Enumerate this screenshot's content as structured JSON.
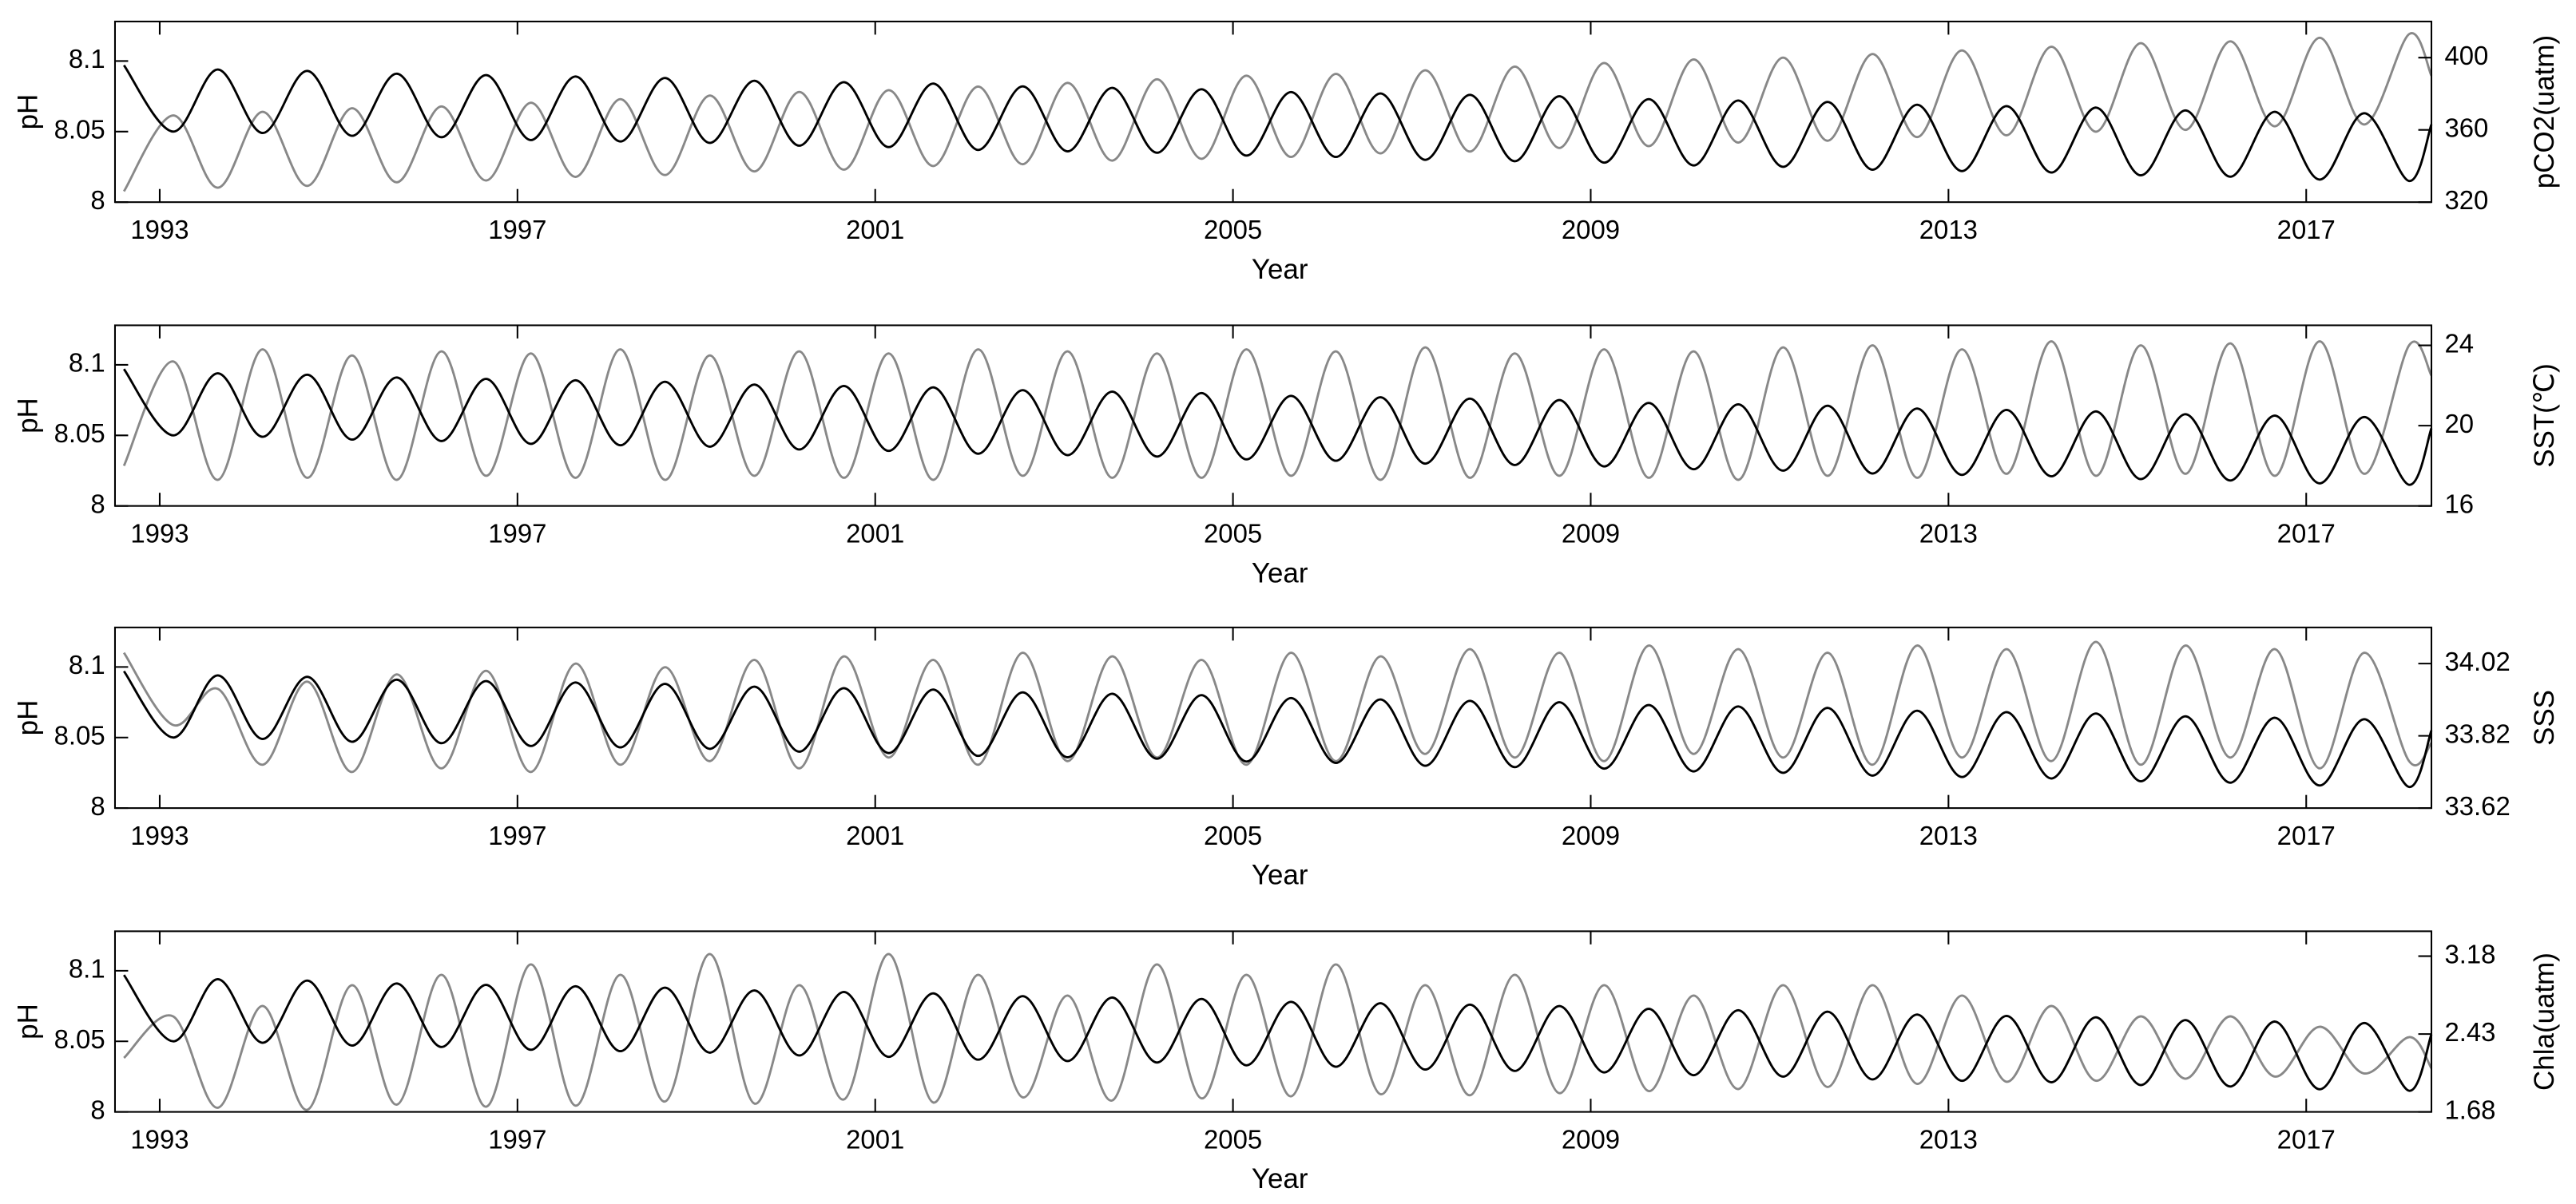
{
  "chart_data": [
    {
      "type": "line",
      "ylabel": "pH",
      "y2label": "pCO2(uatm)",
      "xlabel": "Year",
      "xlim": [
        1992.5,
        2018.4
      ],
      "xticks": [
        1993,
        1997,
        2001,
        2005,
        2009,
        2013,
        2017
      ],
      "ylim": [
        8,
        8.128
      ],
      "yticks": [
        8,
        8.05,
        8.1
      ],
      "y2lim": [
        320,
        420
      ],
      "y2ticks": [
        320,
        360,
        400
      ],
      "x": [
        1992.6,
        1993.15,
        1993.65,
        1994.15,
        1994.65,
        1995.15,
        1995.65,
        1996.15,
        1996.65,
        1997.15,
        1997.65,
        1998.15,
        1998.65,
        1999.15,
        1999.65,
        2000.15,
        2000.65,
        2001.15,
        2001.65,
        2002.15,
        2002.65,
        2003.15,
        2003.65,
        2004.15,
        2004.65,
        2005.15,
        2005.65,
        2006.15,
        2006.65,
        2007.15,
        2007.65,
        2008.15,
        2008.65,
        2009.15,
        2009.65,
        2010.15,
        2010.65,
        2011.15,
        2011.65,
        2012.15,
        2012.65,
        2013.15,
        2013.65,
        2014.15,
        2014.65,
        2015.15,
        2015.65,
        2016.15,
        2016.65,
        2017.15,
        2017.65,
        2018.15,
        2018.4
      ],
      "series": [
        {
          "color": "#000000",
          "axis": "y",
          "values": [
            8.097,
            8.05,
            8.094,
            8.049,
            8.093,
            8.047,
            8.091,
            8.046,
            8.09,
            8.044,
            8.089,
            8.043,
            8.088,
            8.042,
            8.086,
            8.04,
            8.085,
            8.039,
            8.084,
            8.037,
            8.082,
            8.036,
            8.081,
            8.035,
            8.08,
            8.033,
            8.078,
            8.032,
            8.077,
            8.03,
            8.076,
            8.029,
            8.075,
            8.028,
            8.073,
            8.026,
            8.072,
            8.025,
            8.071,
            8.023,
            8.069,
            8.022,
            8.068,
            8.021,
            8.067,
            8.019,
            8.065,
            8.018,
            8.064,
            8.016,
            8.063,
            8.015,
            8.055
          ]
        },
        {
          "color": "#888888",
          "axis": "y2",
          "values": [
            326,
            368,
            328,
            370,
            329,
            372,
            331,
            373,
            332,
            375,
            334,
            377,
            335,
            379,
            337,
            381,
            338,
            382,
            340,
            384,
            341,
            386,
            343,
            388,
            344,
            390,
            345,
            391,
            347,
            393,
            348,
            395,
            350,
            397,
            351,
            399,
            353,
            400,
            354,
            402,
            356,
            404,
            357,
            406,
            359,
            408,
            360,
            409,
            362,
            411,
            363,
            413,
            390
          ]
        }
      ]
    },
    {
      "type": "line",
      "ylabel": "pH",
      "y2label": "SST(℃)",
      "xlabel": "Year",
      "xlim": [
        1992.5,
        2018.4
      ],
      "xticks": [
        1993,
        1997,
        2001,
        2005,
        2009,
        2013,
        2017
      ],
      "ylim": [
        8,
        8.128
      ],
      "yticks": [
        8,
        8.05,
        8.1
      ],
      "y2lim": [
        16,
        25
      ],
      "y2ticks": [
        16,
        20,
        24
      ],
      "x": [
        1992.6,
        1993.15,
        1993.65,
        1994.15,
        1994.65,
        1995.15,
        1995.65,
        1996.15,
        1996.65,
        1997.15,
        1997.65,
        1998.15,
        1998.65,
        1999.15,
        1999.65,
        2000.15,
        2000.65,
        2001.15,
        2001.65,
        2002.15,
        2002.65,
        2003.15,
        2003.65,
        2004.15,
        2004.65,
        2005.15,
        2005.65,
        2006.15,
        2006.65,
        2007.15,
        2007.65,
        2008.15,
        2008.65,
        2009.15,
        2009.65,
        2010.15,
        2010.65,
        2011.15,
        2011.65,
        2012.15,
        2012.65,
        2013.15,
        2013.65,
        2014.15,
        2014.65,
        2015.15,
        2015.65,
        2016.15,
        2016.65,
        2017.15,
        2017.65,
        2018.15,
        2018.4
      ],
      "series": [
        {
          "color": "#000000",
          "axis": "y",
          "values": [
            8.097,
            8.05,
            8.094,
            8.049,
            8.093,
            8.047,
            8.091,
            8.046,
            8.09,
            8.044,
            8.089,
            8.043,
            8.088,
            8.042,
            8.086,
            8.04,
            8.085,
            8.039,
            8.084,
            8.037,
            8.082,
            8.036,
            8.081,
            8.035,
            8.08,
            8.033,
            8.078,
            8.032,
            8.077,
            8.03,
            8.076,
            8.029,
            8.075,
            8.028,
            8.073,
            8.026,
            8.072,
            8.025,
            8.071,
            8.023,
            8.069,
            8.022,
            8.068,
            8.021,
            8.067,
            8.019,
            8.065,
            8.018,
            8.064,
            8.016,
            8.063,
            8.015,
            8.055
          ]
        },
        {
          "color": "#888888",
          "axis": "y2",
          "values": [
            18,
            23.2,
            17.3,
            23.8,
            17.4,
            23.5,
            17.3,
            23.7,
            17.5,
            23.6,
            17.4,
            23.8,
            17.3,
            23.5,
            17.5,
            23.7,
            17.4,
            23.6,
            17.3,
            23.8,
            17.5,
            23.7,
            17.4,
            23.6,
            17.4,
            23.8,
            17.5,
            23.7,
            17.3,
            23.9,
            17.4,
            23.6,
            17.5,
            23.8,
            17.4,
            23.7,
            17.3,
            23.9,
            17.5,
            24,
            17.4,
            23.8,
            17.6,
            24.2,
            17.5,
            24,
            17.6,
            24.1,
            17.5,
            24.2,
            17.6,
            24,
            22.5
          ]
        }
      ]
    },
    {
      "type": "line",
      "ylabel": "pH",
      "y2label": "SSS",
      "xlabel": "Year",
      "xlim": [
        1992.5,
        2018.4
      ],
      "xticks": [
        1993,
        1997,
        2001,
        2005,
        2009,
        2013,
        2017
      ],
      "ylim": [
        8,
        8.128
      ],
      "yticks": [
        8,
        8.05,
        8.1
      ],
      "y2lim": [
        33.62,
        34.12
      ],
      "y2ticks": [
        33.62,
        33.82,
        34.02
      ],
      "x": [
        1992.6,
        1993.15,
        1993.65,
        1994.15,
        1994.65,
        1995.15,
        1995.65,
        1996.15,
        1996.65,
        1997.15,
        1997.65,
        1998.15,
        1998.65,
        1999.15,
        1999.65,
        2000.15,
        2000.65,
        2001.15,
        2001.65,
        2002.15,
        2002.65,
        2003.15,
        2003.65,
        2004.15,
        2004.65,
        2005.15,
        2005.65,
        2006.15,
        2006.65,
        2007.15,
        2007.65,
        2008.15,
        2008.65,
        2009.15,
        2009.65,
        2010.15,
        2010.65,
        2011.15,
        2011.65,
        2012.15,
        2012.65,
        2013.15,
        2013.65,
        2014.15,
        2014.65,
        2015.15,
        2015.65,
        2016.15,
        2016.65,
        2017.15,
        2017.65,
        2018.15,
        2018.4
      ],
      "series": [
        {
          "color": "#000000",
          "axis": "y",
          "values": [
            8.097,
            8.05,
            8.094,
            8.049,
            8.093,
            8.047,
            8.091,
            8.046,
            8.09,
            8.044,
            8.089,
            8.043,
            8.088,
            8.042,
            8.086,
            8.04,
            8.085,
            8.039,
            8.084,
            8.037,
            8.082,
            8.036,
            8.081,
            8.035,
            8.08,
            8.033,
            8.078,
            8.032,
            8.077,
            8.03,
            8.076,
            8.029,
            8.075,
            8.028,
            8.073,
            8.026,
            8.072,
            8.025,
            8.071,
            8.023,
            8.069,
            8.022,
            8.068,
            8.021,
            8.067,
            8.019,
            8.065,
            8.018,
            8.064,
            8.016,
            8.063,
            8.015,
            8.055
          ]
        },
        {
          "color": "#888888",
          "axis": "y2",
          "values": [
            34.05,
            33.85,
            33.95,
            33.74,
            33.97,
            33.72,
            33.99,
            33.73,
            34,
            33.72,
            34.02,
            33.74,
            34.01,
            33.75,
            34.03,
            33.73,
            34.04,
            33.76,
            34.03,
            33.74,
            34.05,
            33.75,
            34.04,
            33.76,
            34.03,
            33.74,
            34.05,
            33.75,
            34.04,
            33.77,
            34.06,
            33.76,
            34.05,
            33.75,
            34.07,
            33.77,
            34.06,
            33.76,
            34.05,
            33.74,
            34.07,
            33.76,
            34.06,
            33.75,
            34.08,
            33.74,
            34.07,
            33.76,
            34.06,
            33.73,
            34.05,
            33.75,
            33.8
          ]
        }
      ]
    },
    {
      "type": "line",
      "ylabel": "pH",
      "y2label": "Chla(uatm)",
      "xlabel": "Year",
      "xlim": [
        1992.5,
        2018.4
      ],
      "xticks": [
        1993,
        1997,
        2001,
        2005,
        2009,
        2013,
        2017
      ],
      "ylim": [
        8,
        8.128
      ],
      "yticks": [
        8,
        8.05,
        8.1
      ],
      "y2lim": [
        1.68,
        3.42
      ],
      "y2ticks": [
        1.68,
        2.43,
        3.18
      ],
      "x": [
        1992.6,
        1993.15,
        1993.65,
        1994.15,
        1994.65,
        1995.15,
        1995.65,
        1996.15,
        1996.65,
        1997.15,
        1997.65,
        1998.15,
        1998.65,
        1999.15,
        1999.65,
        2000.15,
        2000.65,
        2001.15,
        2001.65,
        2002.15,
        2002.65,
        2003.15,
        2003.65,
        2004.15,
        2004.65,
        2005.15,
        2005.65,
        2006.15,
        2006.65,
        2007.15,
        2007.65,
        2008.15,
        2008.65,
        2009.15,
        2009.65,
        2010.15,
        2010.65,
        2011.15,
        2011.65,
        2012.15,
        2012.65,
        2013.15,
        2013.65,
        2014.15,
        2014.65,
        2015.15,
        2015.65,
        2016.15,
        2016.65,
        2017.15,
        2017.65,
        2018.15,
        2018.4
      ],
      "series": [
        {
          "color": "#000000",
          "axis": "y",
          "values": [
            8.097,
            8.05,
            8.094,
            8.049,
            8.093,
            8.047,
            8.091,
            8.046,
            8.09,
            8.044,
            8.089,
            8.043,
            8.088,
            8.042,
            8.086,
            8.04,
            8.085,
            8.039,
            8.084,
            8.037,
            8.082,
            8.036,
            8.081,
            8.035,
            8.08,
            8.033,
            8.078,
            8.032,
            8.077,
            8.03,
            8.076,
            8.029,
            8.075,
            8.028,
            8.073,
            8.026,
            8.072,
            8.025,
            8.071,
            8.023,
            8.069,
            8.022,
            8.068,
            8.021,
            8.067,
            8.019,
            8.065,
            8.018,
            8.064,
            8.016,
            8.063,
            8.015,
            8.055
          ]
        },
        {
          "color": "#888888",
          "axis": "y2",
          "values": [
            2.2,
            2.6,
            1.72,
            2.7,
            1.7,
            2.9,
            1.75,
            3,
            1.73,
            3.1,
            1.74,
            3,
            1.78,
            3.2,
            1.76,
            2.9,
            1.8,
            3.2,
            1.77,
            3,
            1.82,
            2.8,
            1.79,
            3.1,
            1.81,
            3,
            1.83,
            3.1,
            1.85,
            2.9,
            1.84,
            3,
            1.86,
            2.9,
            1.88,
            2.8,
            1.9,
            2.9,
            1.92,
            2.9,
            1.95,
            2.8,
            1.97,
            2.7,
            1.98,
            2.6,
            2,
            2.6,
            2.02,
            2.5,
            2.05,
            2.4,
            2.1
          ]
        }
      ]
    }
  ]
}
